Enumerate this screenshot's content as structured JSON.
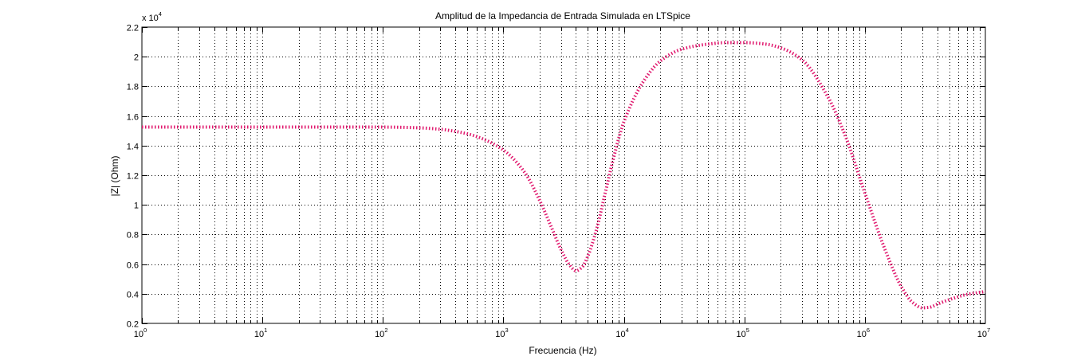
{
  "chart_data": {
    "type": "line",
    "title": "Amplitud de la Impedancia de Entrada Simulada en LTSpice",
    "xlabel": "Frecuencia (Hz)",
    "ylabel": "|Z| (Ohm)",
    "x_scale": "log",
    "xlim": [
      1,
      10000000
    ],
    "ylim": [
      0.2,
      2.2
    ],
    "y_multiplier_label": {
      "base": "x 10",
      "exponent": "4"
    },
    "x_ticks": [
      {
        "base": "10",
        "exponent": "0",
        "value": 1
      },
      {
        "base": "10",
        "exponent": "1",
        "value": 10
      },
      {
        "base": "10",
        "exponent": "2",
        "value": 100
      },
      {
        "base": "10",
        "exponent": "3",
        "value": 1000
      },
      {
        "base": "10",
        "exponent": "4",
        "value": 10000
      },
      {
        "base": "10",
        "exponent": "5",
        "value": 100000
      },
      {
        "base": "10",
        "exponent": "6",
        "value": 1000000
      },
      {
        "base": "10",
        "exponent": "7",
        "value": 10000000
      }
    ],
    "y_ticks": [
      "0.2",
      "0.4",
      "0.6",
      "0.8",
      "1",
      "1.2",
      "1.4",
      "1.6",
      "1.8",
      "2",
      "2.2"
    ],
    "grid": true,
    "line_color": "#e0196e",
    "series": [
      {
        "x": [
          1,
          10,
          100,
          200,
          300,
          500,
          700,
          1000,
          1500,
          2000,
          2500,
          3000,
          3500,
          4000,
          4500,
          5000,
          6000,
          7000,
          8000,
          10000,
          15000,
          20000,
          30000,
          50000,
          70000,
          100000,
          150000,
          200000,
          300000,
          500000,
          700000,
          1000000,
          1500000,
          2000000,
          2500000,
          3000000,
          3500000,
          4000000,
          5000000,
          7000000,
          10000000
        ],
        "y": [
          1.525,
          1.525,
          1.525,
          1.52,
          1.51,
          1.48,
          1.44,
          1.37,
          1.22,
          1.03,
          0.85,
          0.7,
          0.6,
          0.555,
          0.58,
          0.65,
          0.85,
          1.08,
          1.28,
          1.56,
          1.85,
          1.97,
          2.05,
          2.085,
          2.095,
          2.095,
          2.085,
          2.06,
          1.98,
          1.72,
          1.45,
          1.08,
          0.68,
          0.45,
          0.34,
          0.305,
          0.31,
          0.33,
          0.36,
          0.395,
          0.415
        ]
      }
    ]
  }
}
